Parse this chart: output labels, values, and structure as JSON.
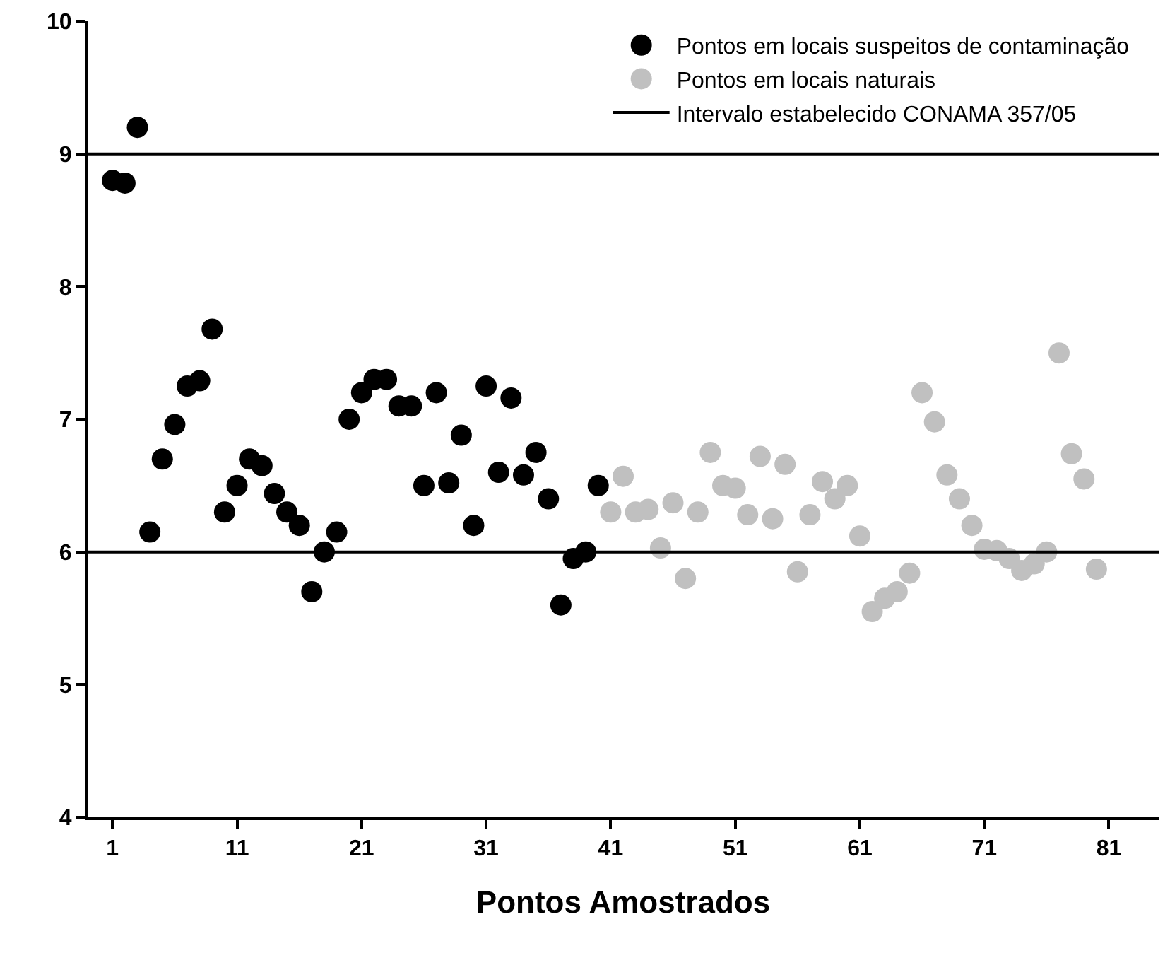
{
  "chart_data": {
    "type": "scatter",
    "xlabel": "Pontos Amostrados",
    "marker": "circle",
    "legend": "top right",
    "grid": false,
    "xlim": [
      -1,
      85
    ],
    "xticks": [
      1,
      11,
      21,
      31,
      41,
      51,
      61,
      71,
      81
    ],
    "ylim": [
      4,
      10
    ],
    "yticks": [
      4,
      5,
      6,
      7,
      8,
      9,
      10
    ],
    "series": [
      {
        "name": "Pontos em locais suspeitos de contaminação",
        "color": "#000000",
        "x": [
          1,
          2,
          3,
          4,
          5,
          6,
          7,
          8,
          9,
          10,
          11,
          12,
          13,
          14,
          15,
          16,
          17,
          18,
          19,
          20,
          21,
          22,
          23,
          24,
          25,
          26,
          27,
          28,
          29,
          30,
          31,
          32,
          33,
          34,
          35,
          36,
          37,
          38,
          39,
          40
        ],
        "values": [
          8.8,
          8.78,
          9.2,
          6.15,
          6.7,
          6.96,
          7.25,
          7.29,
          7.68,
          6.3,
          6.5,
          6.7,
          6.65,
          6.44,
          6.3,
          6.2,
          5.7,
          6.0,
          6.15,
          7.0,
          7.2,
          7.3,
          7.3,
          7.1,
          7.1,
          6.5,
          7.2,
          6.52,
          6.88,
          6.2,
          7.25,
          6.6,
          7.16,
          6.58,
          6.75,
          6.4,
          5.6,
          5.95,
          6.0,
          6.5
        ]
      },
      {
        "name": "Pontos em locais naturais",
        "color": "#c0c0c0",
        "x": [
          41,
          42,
          43,
          44,
          45,
          46,
          47,
          48,
          49,
          50,
          51,
          52,
          53,
          54,
          55,
          56,
          57,
          58,
          59,
          60,
          61,
          62,
          63,
          64,
          65,
          66,
          67,
          68,
          69,
          70,
          71,
          72,
          73,
          74,
          75,
          76,
          77,
          78,
          79,
          80
        ],
        "values": [
          6.3,
          6.57,
          6.3,
          6.32,
          6.03,
          6.37,
          5.8,
          6.3,
          6.75,
          6.5,
          6.48,
          6.28,
          6.72,
          6.25,
          6.66,
          5.85,
          6.28,
          6.53,
          6.4,
          6.5,
          6.12,
          5.55,
          5.65,
          5.7,
          5.84,
          7.2,
          6.98,
          6.58,
          6.4,
          6.2,
          6.02,
          6.01,
          5.95,
          5.86,
          5.91,
          6.0,
          7.5,
          6.74,
          6.55,
          5.87
        ]
      }
    ],
    "ref_lines": [
      {
        "axis": "y",
        "value": 9,
        "label": "Intervalo estabelecido CONAMA 357/05",
        "color": "#000000"
      },
      {
        "axis": "y",
        "value": 6,
        "color": "#000000"
      }
    ]
  }
}
